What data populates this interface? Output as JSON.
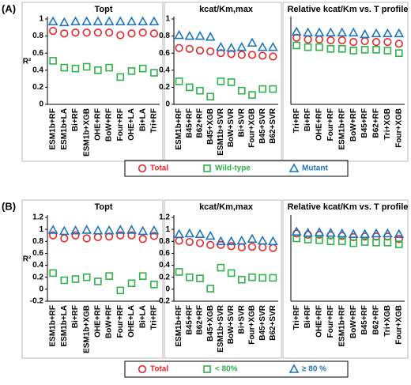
{
  "figure_labels": [
    "(A)",
    "(B)"
  ],
  "chart_data": [
    {
      "type": "dot",
      "title": "Topt",
      "ylabel": "R²",
      "categories": [
        "ESM1b+RF",
        "ESM1b+LA",
        "Bi+RF",
        "ESM1b+XGB",
        "OHE+RF",
        "BoW+RF",
        "Four+RF",
        "OHE+LA",
        "Bi+LA",
        "Tri+RF"
      ],
      "ylim": [
        0,
        1
      ],
      "yticks": [
        0,
        0.2,
        0.4,
        0.6,
        0.8,
        1
      ],
      "series": [
        {
          "name": "Total",
          "color": "#e8262a",
          "marker": "circle",
          "values": [
            0.86,
            0.83,
            0.84,
            0.84,
            0.84,
            0.84,
            0.81,
            0.83,
            0.84,
            0.83
          ]
        },
        {
          "name": "Wild-type",
          "color": "#2db34a",
          "marker": "square",
          "values": [
            0.51,
            0.43,
            0.42,
            0.44,
            0.4,
            0.43,
            0.32,
            0.39,
            0.42,
            0.37
          ]
        },
        {
          "name": "Mutant",
          "color": "#1c75bc",
          "marker": "triangle",
          "values": [
            0.97,
            0.96,
            0.97,
            0.97,
            0.97,
            0.97,
            0.97,
            0.97,
            0.97,
            0.97
          ]
        }
      ]
    },
    {
      "type": "dot",
      "title": "kcat/Km,max",
      "categories": [
        "ESM1b+RF",
        "B45+RF",
        "B62+RF",
        "B45+XGB",
        "ESM1b+SVR",
        "BoW+SVR",
        "Bi+SVR",
        "Four+XGB",
        "B45+SVR",
        "B62+SVR"
      ],
      "ylim": [
        0,
        1
      ],
      "yticks": [
        0,
        0.2,
        0.4,
        0.6,
        0.8,
        1
      ],
      "series": [
        {
          "name": "Total",
          "color": "#e8262a",
          "marker": "circle",
          "values": [
            0.66,
            0.65,
            0.63,
            0.62,
            0.6,
            0.59,
            0.58,
            0.58,
            0.57,
            0.56
          ]
        },
        {
          "name": "Wild-type",
          "color": "#2db34a",
          "marker": "square",
          "values": [
            0.27,
            0.2,
            0.16,
            0.09,
            0.27,
            0.26,
            0.16,
            0.11,
            0.18,
            0.18
          ]
        },
        {
          "name": "Mutant",
          "color": "#1c75bc",
          "marker": "triangle",
          "values": [
            0.81,
            0.8,
            0.8,
            0.79,
            0.67,
            0.66,
            0.67,
            0.72,
            0.67,
            0.67
          ]
        }
      ]
    },
    {
      "type": "dot",
      "title": "Relative kcat/Km vs. T profile",
      "categories": [
        "Tri+RF",
        "Bi+RF",
        "OHE+RF",
        "Four+RF",
        "ESM1b+RF",
        "BoW+RF",
        "B45+RF",
        "B62+RF",
        "Tri+XGB",
        "Four+XGB"
      ],
      "ylim": [
        0,
        1
      ],
      "series": [
        {
          "name": "Total",
          "color": "#e8262a",
          "marker": "circle",
          "values": [
            0.78,
            0.76,
            0.76,
            0.75,
            0.75,
            0.73,
            0.74,
            0.73,
            0.73,
            0.71
          ]
        },
        {
          "name": "Wild-type",
          "color": "#2db34a",
          "marker": "square",
          "values": [
            0.69,
            0.67,
            0.67,
            0.65,
            0.65,
            0.63,
            0.64,
            0.64,
            0.63,
            0.6
          ]
        },
        {
          "name": "Mutant",
          "color": "#1c75bc",
          "marker": "triangle",
          "values": [
            0.85,
            0.84,
            0.84,
            0.84,
            0.84,
            0.84,
            0.82,
            0.83,
            0.83,
            0.83
          ]
        }
      ]
    },
    {
      "type": "dot",
      "title": "Topt",
      "ylabel": "R²",
      "categories": [
        "ESM1b+RF",
        "ESM1b+LA",
        "Bi+RF",
        "ESM1b+XGB",
        "OHE+RF",
        "BoW+RF",
        "Four+RF",
        "OHE+LA",
        "Bi+LA",
        "Tri+RF"
      ],
      "ylim": [
        -0.2,
        1.2
      ],
      "yticks": [
        -0.2,
        0,
        0.2,
        0.4,
        0.6,
        0.8,
        1,
        1.2
      ],
      "series": [
        {
          "name": "Total",
          "color": "#e8262a",
          "marker": "circle",
          "values": [
            0.9,
            0.85,
            0.9,
            0.85,
            0.87,
            0.88,
            0.9,
            0.9,
            0.84,
            0.89
          ]
        },
        {
          "name": "< 80%",
          "color": "#2db34a",
          "marker": "square",
          "values": [
            0.27,
            0.15,
            0.17,
            0.2,
            0.13,
            0.22,
            -0.02,
            0.1,
            0.22,
            0.08
          ]
        },
        {
          "name": "≥ 80 %",
          "color": "#1c75bc",
          "marker": "triangle",
          "values": [
            0.99,
            0.97,
            0.98,
            0.99,
            0.98,
            0.98,
            0.99,
            0.99,
            0.97,
            0.98
          ]
        }
      ]
    },
    {
      "type": "dot",
      "title": "kcat/Km,max",
      "categories": [
        "ESM1b+RF",
        "B45+RF",
        "B62+RF",
        "B45+XGB",
        "ESM1b+SVR",
        "BoW+SVR",
        "Bi+SVR",
        "Four+XGB",
        "B45+SVR",
        "B62+SVR"
      ],
      "ylim": [
        -0.2,
        1.2
      ],
      "yticks": [
        -0.2,
        0,
        0.2,
        0.4,
        0.6,
        0.8,
        1,
        1.2
      ],
      "series": [
        {
          "name": "Total",
          "color": "#e8262a",
          "marker": "circle",
          "values": [
            0.81,
            0.79,
            0.77,
            0.74,
            0.74,
            0.72,
            0.7,
            0.71,
            0.7,
            0.69
          ]
        },
        {
          "name": "< 80%",
          "color": "#2db34a",
          "marker": "square",
          "values": [
            0.29,
            0.2,
            0.18,
            0.01,
            0.36,
            0.27,
            0.16,
            0.2,
            0.19,
            0.19
          ]
        },
        {
          "name": "≥ 80 %",
          "color": "#1c75bc",
          "marker": "triangle",
          "values": [
            0.92,
            0.93,
            0.92,
            0.89,
            0.8,
            0.8,
            0.81,
            0.84,
            0.81,
            0.8
          ]
        }
      ]
    },
    {
      "type": "dot",
      "title": "Relative kcat/Km vs. T profile",
      "categories": [
        "Tri+RF",
        "Bi+RF",
        "OHE+RF",
        "Four+RF",
        "ESM1b+RF",
        "BoW+RF",
        "B45+RF",
        "B62+RF",
        "Tri+XGB",
        "Four+XGB"
      ],
      "ylim": [
        -0.2,
        1.2
      ],
      "series": [
        {
          "name": "Total",
          "color": "#e8262a",
          "marker": "circle",
          "values": [
            0.93,
            0.91,
            0.91,
            0.9,
            0.89,
            0.87,
            0.88,
            0.88,
            0.88,
            0.84
          ]
        },
        {
          "name": "< 80%",
          "color": "#2db34a",
          "marker": "square",
          "values": [
            0.85,
            0.83,
            0.82,
            0.8,
            0.8,
            0.77,
            0.79,
            0.78,
            0.78,
            0.75
          ]
        },
        {
          "name": "≥ 80 %",
          "color": "#1c75bc",
          "marker": "triangle",
          "values": [
            0.96,
            0.94,
            0.95,
            0.94,
            0.93,
            0.92,
            0.92,
            0.93,
            0.93,
            0.92
          ]
        }
      ]
    }
  ]
}
